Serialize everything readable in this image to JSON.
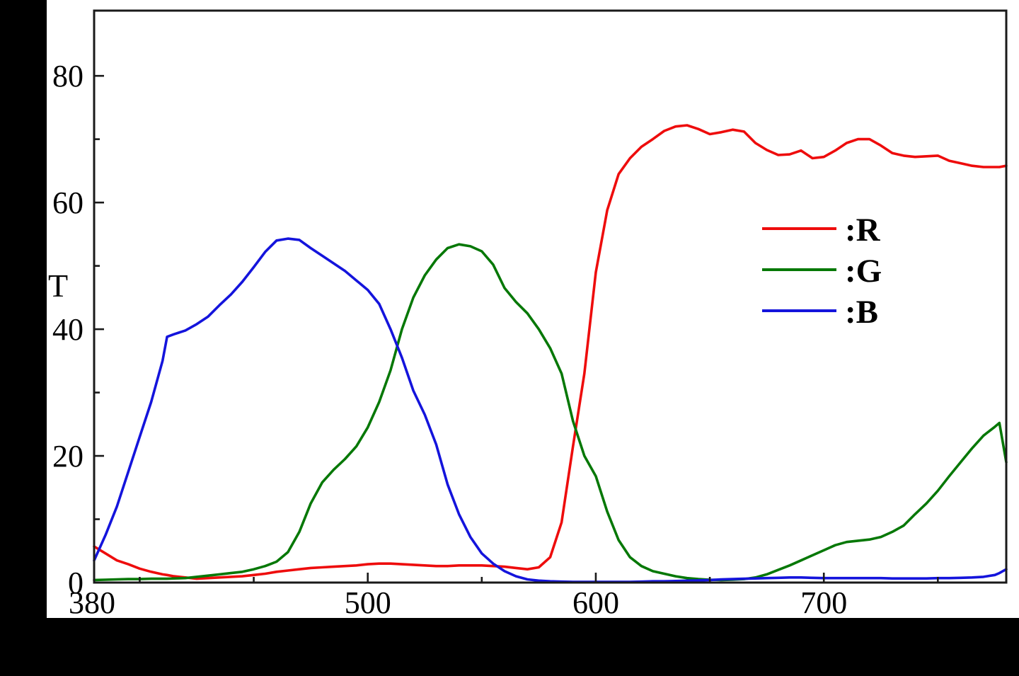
{
  "figure": {
    "background": "#000000",
    "panel_background": "#ffffff",
    "frame_color": "#1a1a1a",
    "text_color": "#000000"
  },
  "chart_data": {
    "type": "line",
    "title": "",
    "xlabel": "",
    "ylabel": "T",
    "grid": false,
    "x_range": [
      380,
      780
    ],
    "y_range": [
      0,
      90.3
    ],
    "x_axis_start_label": {
      "v": 380,
      "label": "380"
    },
    "x_major_ticks": [
      {
        "v": 500,
        "label": "500"
      },
      {
        "v": 600,
        "label": "600"
      },
      {
        "v": 700,
        "label": "700"
      }
    ],
    "x_minor_ticks": [
      400,
      450,
      550,
      650,
      750
    ],
    "y_major_ticks": [
      {
        "v": 0,
        "label": "0"
      },
      {
        "v": 20,
        "label": "20"
      },
      {
        "v": 40,
        "label": "40"
      },
      {
        "v": 60,
        "label": "60"
      },
      {
        "v": 80,
        "label": "80"
      }
    ],
    "y_minor_ticks": [
      10,
      30,
      50,
      70
    ],
    "legend": {
      "position": "upper-right",
      "entries": [
        {
          "label": ":R",
          "series": "R",
          "color": "#ee0c0c"
        },
        {
          "label": ":G",
          "series": "G",
          "color": "#067806"
        },
        {
          "label": ":B",
          "series": "B",
          "color": "#1414dc"
        }
      ]
    },
    "x": [
      380,
      385,
      390,
      395,
      400,
      405,
      410,
      412,
      415,
      420,
      425,
      430,
      435,
      440,
      445,
      450,
      455,
      460,
      465,
      470,
      475,
      480,
      485,
      490,
      495,
      500,
      505,
      510,
      515,
      520,
      525,
      530,
      535,
      540,
      545,
      550,
      555,
      560,
      565,
      570,
      575,
      580,
      585,
      590,
      595,
      600,
      605,
      610,
      615,
      620,
      625,
      630,
      635,
      640,
      645,
      650,
      655,
      660,
      665,
      670,
      675,
      680,
      685,
      690,
      695,
      700,
      705,
      710,
      715,
      720,
      725,
      730,
      735,
      740,
      745,
      750,
      755,
      760,
      765,
      770,
      775,
      777,
      780
    ],
    "series": [
      {
        "name": "R",
        "color": "#ee0c0c",
        "values": [
          5.7,
          4.6,
          3.5,
          2.9,
          2.2,
          1.7,
          1.3,
          1.2,
          1.0,
          0.8,
          0.6,
          0.7,
          0.8,
          0.9,
          1.0,
          1.2,
          1.4,
          1.7,
          1.9,
          2.1,
          2.3,
          2.4,
          2.5,
          2.6,
          2.7,
          2.9,
          3.0,
          3.0,
          2.9,
          2.8,
          2.7,
          2.6,
          2.6,
          2.7,
          2.7,
          2.7,
          2.6,
          2.5,
          2.3,
          2.1,
          2.4,
          4.0,
          9.5,
          21.5,
          33.0,
          49.0,
          58.8,
          64.5,
          67.0,
          68.8,
          70.0,
          71.3,
          72.0,
          72.2,
          71.6,
          70.8,
          71.1,
          71.5,
          71.2,
          69.4,
          68.3,
          67.5,
          67.6,
          68.2,
          67.0,
          67.2,
          68.2,
          69.4,
          70.0,
          70.0,
          69.0,
          67.8,
          67.4,
          67.2,
          67.3,
          67.4,
          66.6,
          66.2,
          65.8,
          65.6,
          65.6,
          65.6,
          65.8
        ]
      },
      {
        "name": "G",
        "color": "#067806",
        "values": [
          0.4,
          0.45,
          0.5,
          0.55,
          0.55,
          0.6,
          0.6,
          0.6,
          0.65,
          0.7,
          0.9,
          1.1,
          1.3,
          1.5,
          1.7,
          2.1,
          2.6,
          3.3,
          4.8,
          8.0,
          12.5,
          15.8,
          17.8,
          19.5,
          21.5,
          24.5,
          28.5,
          33.5,
          40.0,
          45.0,
          48.5,
          51.0,
          52.8,
          53.4,
          53.1,
          52.3,
          50.2,
          46.5,
          44.3,
          42.5,
          40.0,
          37.0,
          33.0,
          25.5,
          20.0,
          16.8,
          11.2,
          6.7,
          4.0,
          2.6,
          1.8,
          1.4,
          1.0,
          0.7,
          0.55,
          0.45,
          0.4,
          0.45,
          0.55,
          0.8,
          1.3,
          2.0,
          2.7,
          3.5,
          4.3,
          5.1,
          5.9,
          6.4,
          6.6,
          6.8,
          7.2,
          8.0,
          9.0,
          10.8,
          12.5,
          14.5,
          16.8,
          19.0,
          21.2,
          23.2,
          24.6,
          25.2,
          19.0
        ]
      },
      {
        "name": "B",
        "color": "#1414dc",
        "values": [
          3.5,
          7.5,
          12.0,
          17.5,
          23.0,
          28.5,
          35.0,
          38.8,
          39.2,
          39.8,
          40.8,
          42.0,
          43.8,
          45.5,
          47.5,
          49.8,
          52.2,
          54.0,
          54.3,
          54.1,
          52.8,
          51.6,
          50.4,
          49.2,
          47.7,
          46.2,
          44.0,
          40.0,
          35.5,
          30.3,
          26.5,
          21.8,
          15.5,
          10.8,
          7.2,
          4.6,
          3.0,
          1.8,
          1.0,
          0.5,
          0.3,
          0.2,
          0.15,
          0.1,
          0.1,
          0.1,
          0.1,
          0.1,
          0.1,
          0.15,
          0.2,
          0.2,
          0.25,
          0.3,
          0.35,
          0.4,
          0.5,
          0.55,
          0.6,
          0.65,
          0.7,
          0.75,
          0.8,
          0.8,
          0.75,
          0.7,
          0.7,
          0.7,
          0.7,
          0.7,
          0.7,
          0.65,
          0.65,
          0.65,
          0.65,
          0.7,
          0.7,
          0.75,
          0.8,
          0.9,
          1.2,
          1.5,
          2.1
        ]
      }
    ]
  }
}
